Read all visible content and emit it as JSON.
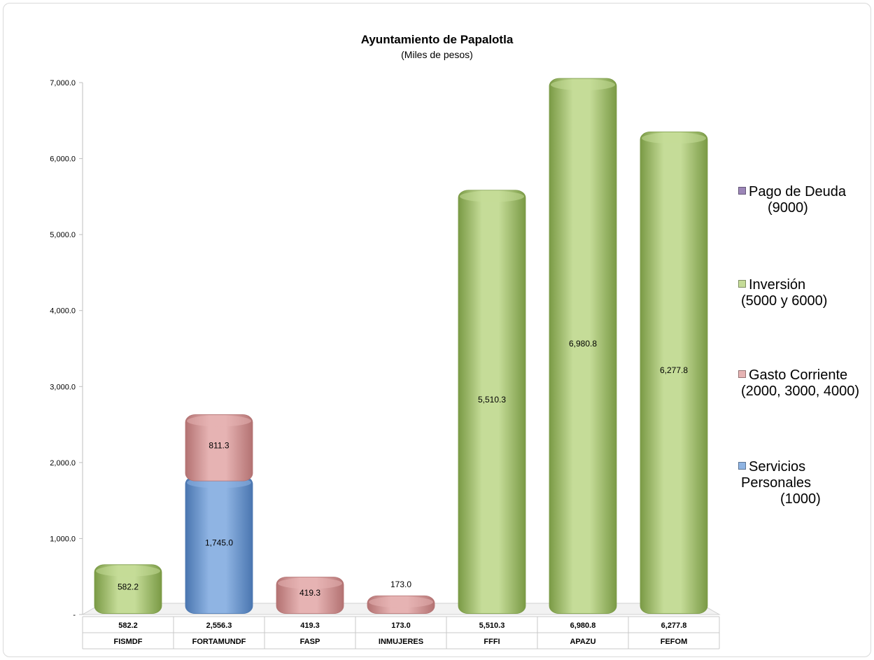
{
  "chart_data": {
    "type": "bar",
    "stacked": true,
    "title": "Ayuntamiento de Papalotla",
    "subtitle": "(Miles de pesos)",
    "categories": [
      "FISMDF",
      "FORTAMUNDF",
      "FASP",
      "INMUJERES",
      "FFFI",
      "APAZU",
      "FEFOM"
    ],
    "totals": [
      "582.2",
      "2,556.3",
      "419.3",
      "173.0",
      "5,510.3",
      "6,980.8",
      "6,277.8"
    ],
    "series": [
      {
        "name": "Servicios Personales (1000)",
        "legend_lines": [
          "Servicios",
          "Personales",
          "(1000)"
        ],
        "color": "#8fb4e3",
        "stroke": "#4a76b0",
        "values": [
          0,
          1745.0,
          0,
          0,
          0,
          0,
          0
        ],
        "labels": [
          "",
          "1,745.0",
          "",
          "",
          "",
          "",
          ""
        ]
      },
      {
        "name": "Gasto Corriente (2000, 3000, 4000)",
        "legend_lines": [
          "Gasto Corriente",
          "(2000, 3000, 4000)"
        ],
        "color": "#e6b3b3",
        "stroke": "#b37272",
        "values": [
          0,
          811.3,
          419.3,
          173.0,
          0,
          0,
          0
        ],
        "labels": [
          "",
          "811.3",
          "419.3",
          "173.0",
          "",
          "",
          ""
        ]
      },
      {
        "name": "Inversión (5000 y 6000)",
        "legend_lines": [
          "Inversión",
          "(5000 y 6000)"
        ],
        "color": "#c5dc98",
        "stroke": "#7a9a45",
        "values": [
          582.2,
          0,
          0,
          0,
          5510.3,
          6980.8,
          6277.8
        ],
        "labels": [
          "582.2",
          "",
          "",
          "",
          "5,510.3",
          "6,980.8",
          "6,277.8"
        ]
      },
      {
        "name": "Pago de Deuda (9000)",
        "legend_lines": [
          "Pago de Deuda",
          "(9000)"
        ],
        "color": "#9c86b8",
        "stroke": "#6b5790",
        "values": [
          0,
          0,
          0,
          0,
          0,
          0,
          0
        ],
        "labels": [
          "",
          "",
          "",
          "",
          "",
          "",
          ""
        ]
      }
    ],
    "y_ticks": [
      "-",
      "1,000.0",
      "2,000.0",
      "3,000.0",
      "4,000.0",
      "5,000.0",
      "6,000.0",
      "7,000.0"
    ],
    "ylim": [
      0,
      7000
    ],
    "legend_position": "right",
    "grid": false
  }
}
